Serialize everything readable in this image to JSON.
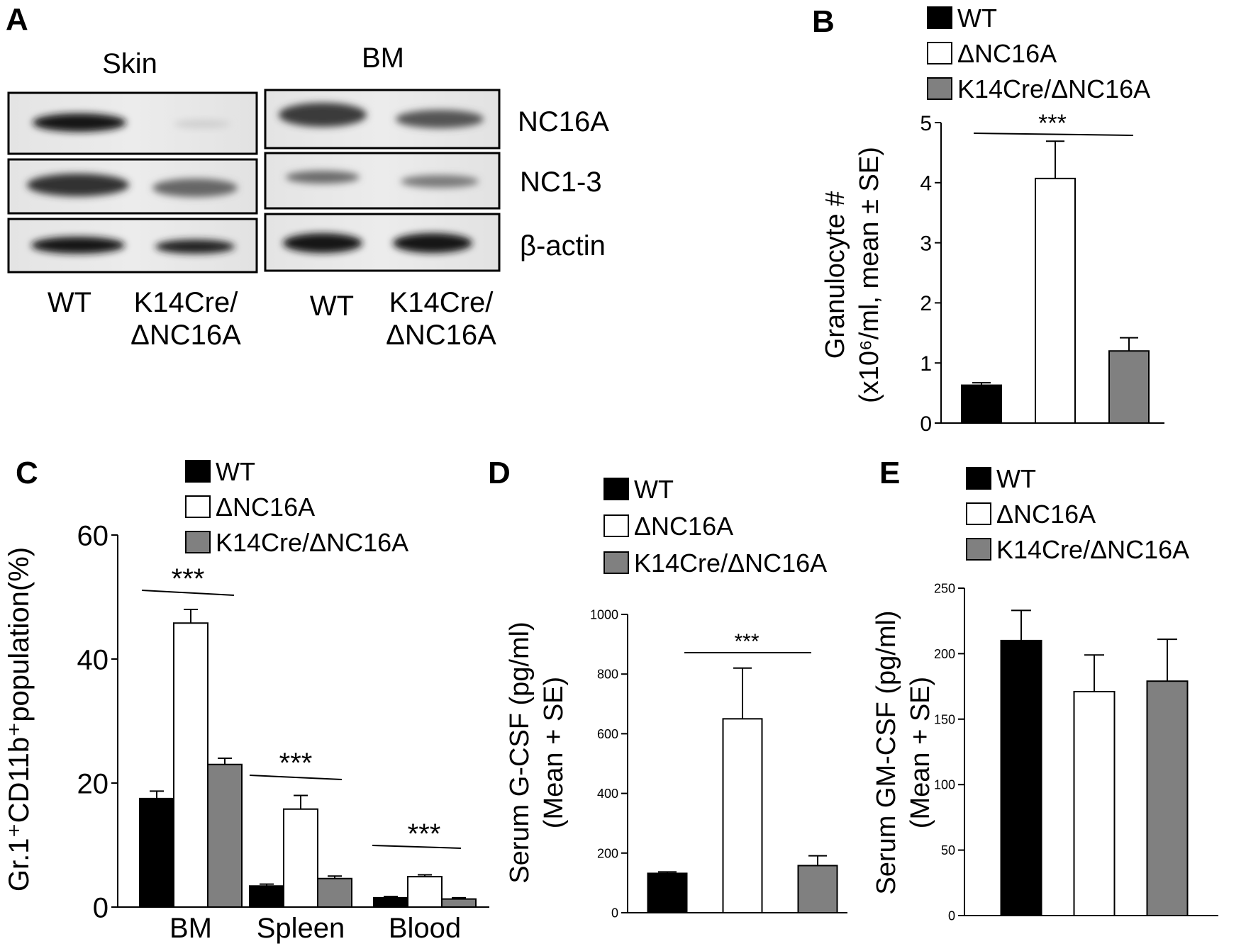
{
  "panelA": {
    "letter": "A",
    "groups": [
      {
        "title": "Skin",
        "lanes": [
          "WT",
          "K14Cre/ΔNC16A"
        ]
      },
      {
        "title": "BM",
        "lanes": [
          "WT",
          "K14Cre/ΔNC16A"
        ]
      }
    ],
    "rows": [
      "NC16A",
      "NC1-3",
      "β-actin"
    ]
  },
  "chart_data": [
    {
      "panel": "B",
      "type": "bar",
      "categories": [
        "WT",
        "ΔNC16A",
        "K14Cre/ΔNC16A"
      ],
      "values": [
        0.63,
        4.07,
        1.2
      ],
      "errors": [
        0.04,
        0.62,
        0.22
      ],
      "legend": [
        "WT",
        "ΔNC16A",
        "K14Cre/ΔNC16A"
      ],
      "colors": [
        "#000000",
        "#ffffff",
        "#808080"
      ],
      "ylabel_line1": "Granulocyte #",
      "ylabel_line2": "(x10⁶/ml, mean ± SE)",
      "ylim": [
        0,
        5
      ],
      "yticks": [
        "0",
        "1",
        "2",
        "3",
        "4",
        "5"
      ],
      "significance": "***"
    },
    {
      "panel": "C",
      "type": "bar",
      "categories": [
        "BM",
        "Spleen",
        "Blood"
      ],
      "series": [
        {
          "name": "WT",
          "values": [
            17.5,
            3.4,
            1.5
          ],
          "errors": [
            1.2,
            0.3,
            0.2
          ]
        },
        {
          "name": "ΔNC16A",
          "values": [
            45.8,
            15.8,
            4.9
          ],
          "errors": [
            2.2,
            2.2,
            0.3
          ]
        },
        {
          "name": "K14Cre/ΔNC16A",
          "values": [
            23.0,
            4.6,
            1.3
          ],
          "errors": [
            1.0,
            0.4,
            0.2
          ]
        }
      ],
      "colors": [
        "#000000",
        "#ffffff",
        "#808080"
      ],
      "ylabel": "Gr.1⁺CD11b⁺population(%)",
      "ylim": [
        0,
        60
      ],
      "yticks": [
        "0",
        "20",
        "40",
        "60"
      ],
      "significance": [
        "***",
        "***",
        "***"
      ]
    },
    {
      "panel": "D",
      "type": "bar",
      "categories": [
        "WT",
        "ΔNC16A",
        "K14Cre/ΔNC16A"
      ],
      "values": [
        132,
        650,
        158
      ],
      "errors": [
        5,
        170,
        33
      ],
      "legend": [
        "WT",
        "ΔNC16A",
        "K14Cre/ΔNC16A"
      ],
      "colors": [
        "#000000",
        "#ffffff",
        "#808080"
      ],
      "ylabel_line1": "Serum G-CSF (pg/ml)",
      "ylabel_line2": "(Mean + SE)",
      "ylim": [
        0,
        1000
      ],
      "yticks": [
        "0",
        "200",
        "400",
        "600",
        "800",
        "1000"
      ],
      "significance": "***"
    },
    {
      "panel": "E",
      "type": "bar",
      "categories": [
        "WT",
        "ΔNC16A",
        "K14Cre/ΔNC16A"
      ],
      "values": [
        210,
        171,
        179
      ],
      "errors": [
        23,
        28,
        32
      ],
      "legend": [
        "WT",
        "ΔNC16A",
        "K14Cre/ΔNC16A"
      ],
      "colors": [
        "#000000",
        "#ffffff",
        "#808080"
      ],
      "ylabel_line1": "Serum GM-CSF (pg/ml)",
      "ylabel_line2": "(Mean + SE)",
      "ylim": [
        0,
        250
      ],
      "yticks": [
        "0",
        "50",
        "100",
        "150",
        "200",
        "250"
      ]
    }
  ]
}
